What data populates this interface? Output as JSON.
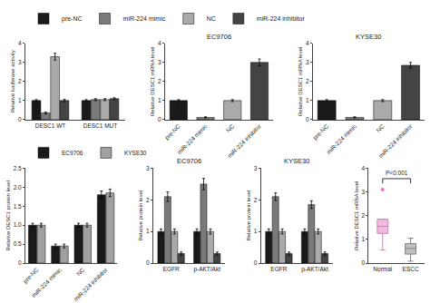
{
  "chart_data": [
    {
      "type": "bar",
      "ylabel": "Relative luciferase activity",
      "categories": [
        "DESC1 WT",
        "DESC1 MUT"
      ],
      "series": [
        {
          "name": "pre-NC",
          "color": "#1a1a1a",
          "values": [
            1.0,
            1.0
          ],
          "errors": [
            0.05,
            0.05
          ]
        },
        {
          "name": "miR-224 mimic",
          "color": "#7a7a7a",
          "values": [
            0.35,
            1.05
          ],
          "errors": [
            0.05,
            0.05
          ]
        },
        {
          "name": "NC",
          "color": "#aaaaaa",
          "values": [
            3.3,
            1.05
          ],
          "errors": [
            0.18,
            0.05
          ]
        },
        {
          "name": "miR-224 inhibitor",
          "color": "#444444",
          "values": [
            1.0,
            1.1
          ],
          "errors": [
            0.06,
            0.05
          ]
        }
      ],
      "ylim": [
        0,
        4.0
      ],
      "yticks": [
        0,
        1,
        2,
        3,
        4
      ],
      "grid": false,
      "legend": "top"
    },
    {
      "type": "bar",
      "title": "EC9706",
      "ylabel": "Relative DESC1 mRNA level",
      "categories": [
        "pre-NC",
        "miR-224 mimic",
        "NC",
        "miR-224 inhibitor"
      ],
      "colors": [
        "#1a1a1a",
        "#7a7a7a",
        "#aaaaaa",
        "#444444"
      ],
      "values": [
        1.0,
        0.12,
        1.0,
        3.0
      ],
      "errors": [
        0.05,
        0.03,
        0.05,
        0.18
      ],
      "ylim": [
        0,
        4
      ],
      "yticks": [
        0,
        1,
        2,
        3,
        4
      ],
      "grid": false
    },
    {
      "type": "bar",
      "title": "KYSE30",
      "ylabel": "Relative DESC1 mRNA level",
      "categories": [
        "pre-NC",
        "miR-224 mimic",
        "NC",
        "miR-224 inhibitor"
      ],
      "colors": [
        "#1a1a1a",
        "#7a7a7a",
        "#aaaaaa",
        "#444444"
      ],
      "values": [
        1.0,
        0.12,
        1.0,
        2.85
      ],
      "errors": [
        0.05,
        0.03,
        0.05,
        0.15
      ],
      "ylim": [
        0,
        4
      ],
      "yticks": [
        0,
        1,
        2,
        3,
        4
      ],
      "grid": false
    },
    {
      "type": "bar",
      "ylabel": "Relative DESC1 protein level",
      "categories": [
        "pre-NC",
        "miR-224 mimic",
        "NC",
        "miR-224 inhibitor"
      ],
      "series": [
        {
          "name": "EC9706",
          "color": "#1a1a1a",
          "values": [
            1.0,
            0.45,
            1.0,
            1.8
          ],
          "errors": [
            0.05,
            0.05,
            0.05,
            0.1
          ]
        },
        {
          "name": "KYSE30",
          "color": "#a0a0a0",
          "values": [
            1.0,
            0.45,
            1.0,
            1.85
          ],
          "errors": [
            0.05,
            0.05,
            0.05,
            0.1
          ]
        }
      ],
      "ylim": [
        0,
        2.5
      ],
      "yticks": [
        0,
        0.5,
        {
          "value": 1.0,
          "label": "1.0"
        },
        1.5,
        {
          "value": 2.0,
          "label": "2.0"
        },
        2.5
      ],
      "grid": false,
      "legend": "top"
    },
    {
      "type": "bar",
      "title": "EC9706",
      "ylabel": "Relative protein level",
      "categories": [
        "EGFR",
        "p-AKT/Akt"
      ],
      "series": [
        {
          "name": "pre-NC",
          "color": "#1a1a1a",
          "values": [
            1.0,
            1.0
          ],
          "errors": [
            0.08,
            0.08
          ]
        },
        {
          "name": "miR-224 mimic",
          "color": "#7a7a7a",
          "values": [
            2.1,
            2.5
          ],
          "errors": [
            0.15,
            0.18
          ]
        },
        {
          "name": "NC",
          "color": "#aaaaaa",
          "values": [
            1.0,
            1.0
          ],
          "errors": [
            0.08,
            0.08
          ]
        },
        {
          "name": "miR-224 inhibitor",
          "color": "#444444",
          "values": [
            0.3,
            0.3
          ],
          "errors": [
            0.05,
            0.05
          ]
        }
      ],
      "ylim": [
        0,
        3
      ],
      "yticks": [
        0,
        1,
        2,
        3
      ],
      "grid": false,
      "legend": "top"
    },
    {
      "type": "bar",
      "title": "KYSE30",
      "ylabel": "Relative protein level",
      "categories": [
        "EGFR",
        "p-AKT/Akt"
      ],
      "series": [
        {
          "name": "pre-NC",
          "color": "#1a1a1a",
          "values": [
            1.0,
            1.0
          ],
          "errors": [
            0.08,
            0.08
          ]
        },
        {
          "name": "miR-224 mimic",
          "color": "#7a7a7a",
          "values": [
            2.1,
            1.85
          ],
          "errors": [
            0.12,
            0.12
          ]
        },
        {
          "name": "NC",
          "color": "#aaaaaa",
          "values": [
            1.0,
            1.0
          ],
          "errors": [
            0.08,
            0.08
          ]
        },
        {
          "name": "miR-224 inhibitor",
          "color": "#444444",
          "values": [
            0.3,
            0.3
          ],
          "errors": [
            0.05,
            0.05
          ]
        }
      ],
      "ylim": [
        0,
        3
      ],
      "yticks": [
        0,
        1,
        2,
        3
      ],
      "grid": false,
      "legend": "top"
    },
    {
      "type": "box",
      "ylabel": "Relative DESC1 mRNA level",
      "categories": [
        "Normal",
        "ESCC"
      ],
      "values": [
        [
          0.55,
          1.25,
          1.55,
          1.85,
          3.1
        ],
        [
          0.08,
          0.38,
          0.62,
          0.82,
          1.05
        ]
      ],
      "annotations": [
        "P<0.001"
      ],
      "ylim": [
        0,
        4
      ],
      "yticks": [
        0,
        1,
        2,
        3,
        4
      ],
      "grid": false
    }
  ]
}
